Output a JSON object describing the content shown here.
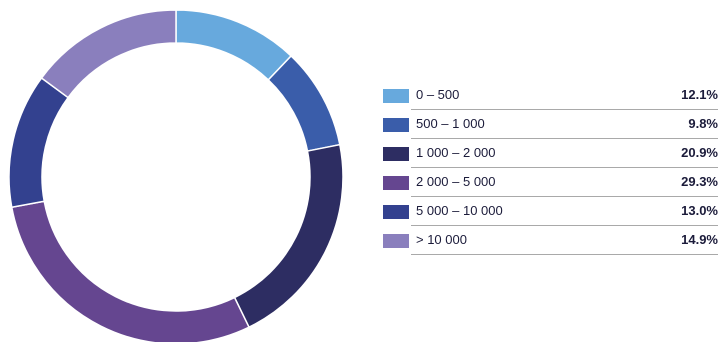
{
  "chart_data": {
    "type": "pie",
    "style": "donut",
    "legend_position": "right",
    "categories": [
      "0 – 500",
      "500 – 1 000",
      "1 000 – 2 000",
      "2 000 – 5 000",
      "5 000 – 10 000",
      "> 10 000"
    ],
    "values": [
      12.1,
      9.8,
      20.9,
      29.3,
      13.0,
      14.9
    ],
    "value_labels": [
      "12.1%",
      "9.8%",
      "20.9%",
      "29.3%",
      "13.0%",
      "14.9%"
    ],
    "colors": [
      "#67a9dd",
      "#3a5daa",
      "#2d2d62",
      "#654690",
      "#33418f",
      "#8a7fbd"
    ]
  }
}
